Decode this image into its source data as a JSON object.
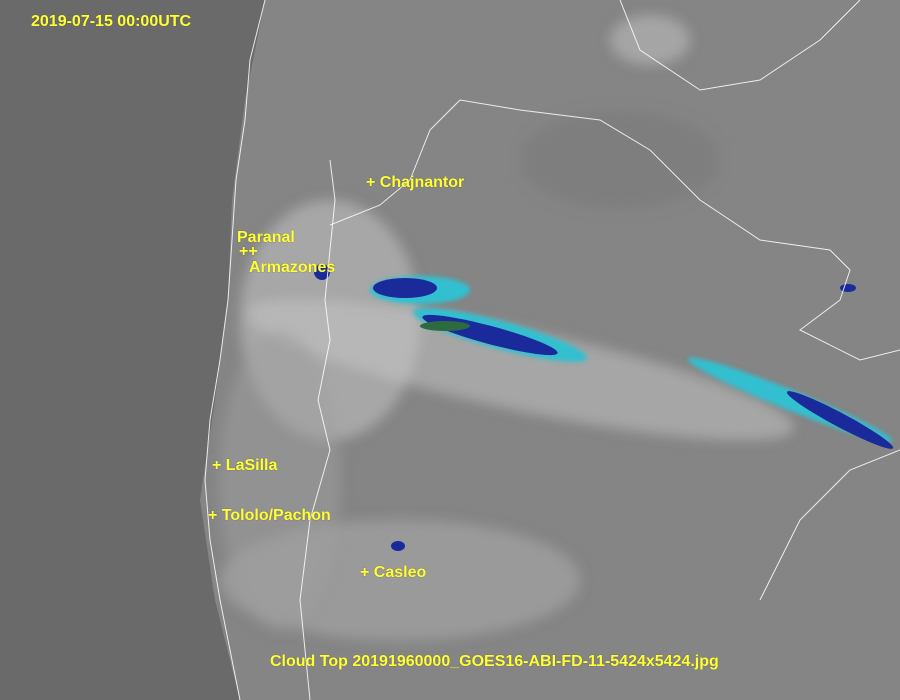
{
  "timestamp": "2019-07-15 00:00UTC",
  "caption": "Cloud Top 20191960000_GOES16-ABI-FD-11-5424x5424.jpg",
  "sites": [
    {
      "name": "Chajnantor",
      "marker": "+ Chajnantor"
    },
    {
      "name": "Paranal",
      "marker": "Paranal"
    },
    {
      "name": "Paranal/Armazones markers",
      "marker": "++"
    },
    {
      "name": "Armazones",
      "marker": "Armazones"
    },
    {
      "name": "LaSilla",
      "marker": "+ LaSilla"
    },
    {
      "name": "Tololo/Pachon",
      "marker": "+ Tololo/Pachon"
    },
    {
      "name": "Casleo",
      "marker": "+ Casleo"
    }
  ],
  "colors": {
    "label": "#ffff33",
    "ocean": "#6a6a6a",
    "land": "#8a8a8a",
    "cold_cloud": "#1a2a9a",
    "cloud_edge": "#30c0d0",
    "border": "#ffffff"
  }
}
